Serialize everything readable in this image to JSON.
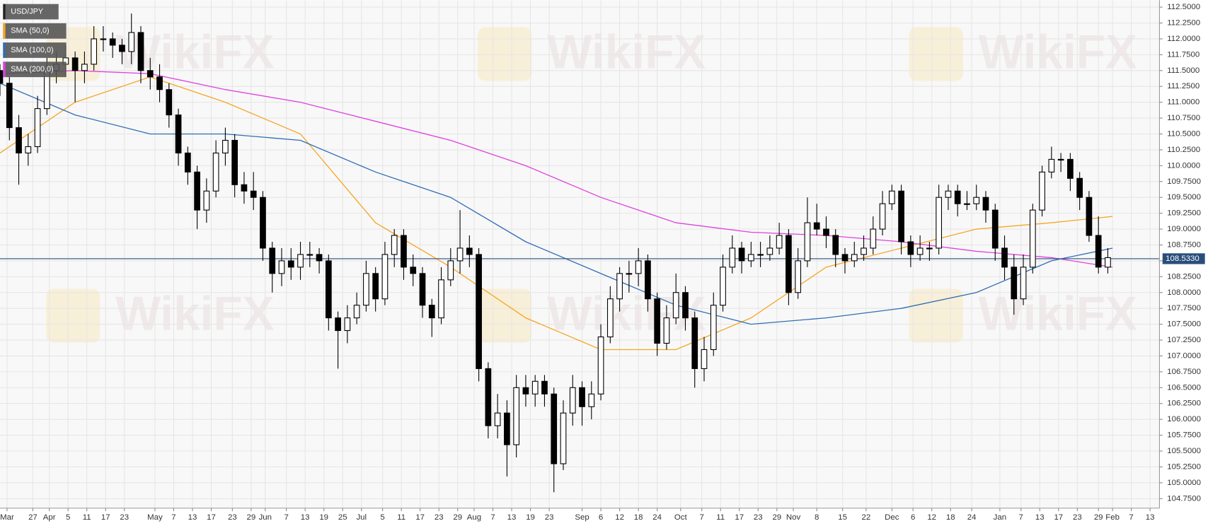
{
  "chart_data": {
    "type": "candlestick",
    "title": "USD/JPY",
    "watermark": "WikiFX",
    "price_line": {
      "value": 108.533,
      "label": "108.5330",
      "color": "#2a4e7c"
    },
    "candles": {
      "up_color": "#ffffff",
      "down_color": "#000000",
      "x": [
        0,
        2,
        4,
        6,
        8,
        10,
        12,
        14,
        16,
        18,
        20,
        22,
        24,
        26,
        28,
        30,
        32,
        34,
        36,
        38,
        40,
        42,
        44,
        46,
        48,
        50,
        52,
        54,
        56,
        58,
        60,
        62,
        64,
        66,
        68,
        70,
        72,
        74,
        76,
        78,
        80,
        82,
        84,
        86,
        88,
        90,
        92,
        94,
        96,
        98,
        100,
        102,
        104,
        106,
        108,
        110,
        112,
        114,
        116,
        118,
        120,
        122,
        124,
        126,
        128,
        130,
        132,
        134,
        136,
        138,
        140,
        142,
        144,
        146,
        148,
        150,
        152,
        154,
        156,
        158,
        160,
        162,
        164,
        166,
        168,
        170,
        172,
        174,
        176,
        178,
        180,
        182,
        184,
        186,
        188,
        190,
        192,
        194,
        196,
        198,
        200,
        202,
        204,
        206,
        208,
        210,
        212,
        214,
        216,
        218,
        220,
        222,
        224,
        226,
        228,
        230,
        232,
        234,
        236
      ],
      "open": [
        111.5,
        111.3,
        110.6,
        110.2,
        110.3,
        110.9,
        111.5,
        111.6,
        111.7,
        111.5,
        111.6,
        112.0,
        112.0,
        111.9,
        111.8,
        112.1,
        111.5,
        111.4,
        111.2,
        110.8,
        110.2,
        109.9,
        109.3,
        109.6,
        110.2,
        110.4,
        109.7,
        109.6,
        109.5,
        108.7,
        108.3,
        108.5,
        108.4,
        108.6,
        108.6,
        108.5,
        107.6,
        107.4,
        107.6,
        107.8,
        108.3,
        107.9,
        108.6,
        108.9,
        108.4,
        108.3,
        107.8,
        107.6,
        108.2,
        108.5,
        108.7,
        108.6,
        106.8,
        105.9,
        106.1,
        105.6,
        106.5,
        106.4,
        106.6,
        106.4,
        105.3,
        106.1,
        106.5,
        106.2,
        106.4,
        107.3,
        107.9,
        108.3,
        108.3,
        108.5,
        107.9,
        107.2,
        107.6,
        108.0,
        107.6,
        106.8,
        107.1,
        107.8,
        108.4,
        108.7,
        108.5,
        108.6,
        108.6,
        108.7,
        108.9,
        108.0,
        108.5,
        109.1,
        109.0,
        108.9,
        108.6,
        108.5,
        108.6,
        108.7,
        109.0,
        109.4,
        109.6,
        108.8,
        108.6,
        108.7,
        108.7,
        109.5,
        109.6,
        109.4,
        109.4,
        109.5,
        109.3,
        108.7,
        108.4,
        107.9,
        108.4,
        109.3,
        109.9,
        110.1,
        110.1,
        109.8,
        109.5,
        108.9,
        108.4
      ],
      "high": [
        111.6,
        111.4,
        110.8,
        110.5,
        111.1,
        111.7,
        111.8,
        111.9,
        111.8,
        111.8,
        112.2,
        112.2,
        112.1,
        112.0,
        112.4,
        112.2,
        111.7,
        111.6,
        111.3,
        110.9,
        110.3,
        110.0,
        109.8,
        110.4,
        110.6,
        110.5,
        109.9,
        109.9,
        109.6,
        108.8,
        108.7,
        108.7,
        108.8,
        108.8,
        108.7,
        108.6,
        107.7,
        107.8,
        108.0,
        108.5,
        108.4,
        108.8,
        109.0,
        109.0,
        108.6,
        108.4,
        107.9,
        108.4,
        108.7,
        109.3,
        108.9,
        108.7,
        106.9,
        106.4,
        106.3,
        106.7,
        106.7,
        106.7,
        106.7,
        106.5,
        106.3,
        106.7,
        106.6,
        106.6,
        107.5,
        108.1,
        108.4,
        108.5,
        108.7,
        108.6,
        108.0,
        107.8,
        108.3,
        108.1,
        107.7,
        107.3,
        108.0,
        108.6,
        108.9,
        108.8,
        108.8,
        108.8,
        108.9,
        109.1,
        109.0,
        108.7,
        109.5,
        109.4,
        109.2,
        109.0,
        108.7,
        108.8,
        108.9,
        109.2,
        109.6,
        109.7,
        109.7,
        108.9,
        108.9,
        108.8,
        109.7,
        109.7,
        109.7,
        109.6,
        109.7,
        109.6,
        109.4,
        108.9,
        108.6,
        108.6,
        109.4,
        110.0,
        110.3,
        110.2,
        110.2,
        109.9,
        109.6,
        109.2,
        108.7
      ],
      "low": [
        111.1,
        110.4,
        109.7,
        110.0,
        110.2,
        110.8,
        111.3,
        111.4,
        111.0,
        111.3,
        111.5,
        111.8,
        111.7,
        111.6,
        111.6,
        111.3,
        111.2,
        111.0,
        110.6,
        110.0,
        109.7,
        109.0,
        109.1,
        109.5,
        110.0,
        109.5,
        109.4,
        109.3,
        108.5,
        108.0,
        108.1,
        108.2,
        108.2,
        108.4,
        108.3,
        107.4,
        106.8,
        107.2,
        107.5,
        107.7,
        107.7,
        107.8,
        108.4,
        108.2,
        108.1,
        107.6,
        107.3,
        107.5,
        108.1,
        108.3,
        108.4,
        106.6,
        105.7,
        105.7,
        105.1,
        105.4,
        106.2,
        106.2,
        106.2,
        104.85,
        105.2,
        105.9,
        105.9,
        106.0,
        106.3,
        107.2,
        107.7,
        108.0,
        108.1,
        107.7,
        107.0,
        107.1,
        107.5,
        107.4,
        106.5,
        106.6,
        107.0,
        107.7,
        108.3,
        108.3,
        108.4,
        108.4,
        108.5,
        108.6,
        107.8,
        107.9,
        108.4,
        108.9,
        108.7,
        108.4,
        108.3,
        108.4,
        108.5,
        108.6,
        108.9,
        109.3,
        108.6,
        108.4,
        108.5,
        108.5,
        108.6,
        109.3,
        109.2,
        109.3,
        109.3,
        109.1,
        108.5,
        108.2,
        107.65,
        107.8,
        108.3,
        109.2,
        109.8,
        109.9,
        109.6,
        109.3,
        108.8,
        108.3,
        108.3
      ],
      "close": [
        111.3,
        110.6,
        110.2,
        110.3,
        110.9,
        111.5,
        111.6,
        111.7,
        111.5,
        111.6,
        112.0,
        112.0,
        111.9,
        111.8,
        112.1,
        111.5,
        111.4,
        111.2,
        110.8,
        110.2,
        109.9,
        109.3,
        109.6,
        110.2,
        110.4,
        109.7,
        109.6,
        109.5,
        108.7,
        108.3,
        108.5,
        108.4,
        108.6,
        108.6,
        108.5,
        107.6,
        107.4,
        107.6,
        107.8,
        108.3,
        107.9,
        108.6,
        108.9,
        108.4,
        108.3,
        107.8,
        107.6,
        108.2,
        108.5,
        108.7,
        108.6,
        106.8,
        105.9,
        106.1,
        105.6,
        106.5,
        106.4,
        106.6,
        106.4,
        105.3,
        106.1,
        106.5,
        106.2,
        106.4,
        107.3,
        107.9,
        108.3,
        108.3,
        108.5,
        107.9,
        107.2,
        107.6,
        108.0,
        107.6,
        106.8,
        107.1,
        107.8,
        108.4,
        108.7,
        108.5,
        108.6,
        108.6,
        108.7,
        108.9,
        108.0,
        108.5,
        109.1,
        109.0,
        108.9,
        108.6,
        108.5,
        108.6,
        108.7,
        109.0,
        109.4,
        109.6,
        108.8,
        108.6,
        108.7,
        108.7,
        109.5,
        109.6,
        109.4,
        109.4,
        109.5,
        109.3,
        108.7,
        108.4,
        107.9,
        108.4,
        109.3,
        109.9,
        110.1,
        110.1,
        109.8,
        109.5,
        108.9,
        108.4,
        108.55
      ]
    },
    "series": [
      {
        "name": "SMA (50,0)",
        "color": "#f5a623",
        "x": [
          0,
          16,
          32,
          48,
          64,
          80,
          96,
          112,
          128,
          144,
          160,
          176,
          192,
          208,
          224,
          237
        ],
        "values": [
          110.2,
          111.0,
          111.4,
          111.0,
          110.5,
          109.1,
          108.4,
          107.6,
          107.1,
          107.1,
          107.6,
          108.4,
          108.7,
          109.0,
          109.1,
          109.2
        ]
      },
      {
        "name": "SMA (100,0)",
        "color": "#2f6db5",
        "x": [
          0,
          16,
          32,
          48,
          64,
          80,
          96,
          112,
          128,
          144,
          160,
          176,
          192,
          208,
          224,
          237
        ],
        "values": [
          111.3,
          110.8,
          110.5,
          110.5,
          110.4,
          109.9,
          109.5,
          108.8,
          108.3,
          107.8,
          107.5,
          107.6,
          107.75,
          108.0,
          108.5,
          108.7
        ]
      },
      {
        "name": "SMA (200,0)",
        "color": "#e040e0",
        "x": [
          0,
          16,
          32,
          48,
          64,
          80,
          96,
          112,
          128,
          144,
          160,
          176,
          192,
          208,
          224,
          237
        ],
        "values": [
          111.45,
          111.5,
          111.45,
          111.2,
          111.0,
          110.7,
          110.4,
          110.0,
          109.5,
          109.1,
          108.95,
          108.9,
          108.8,
          108.65,
          108.55,
          108.4
        ]
      }
    ],
    "xlim": [
      0,
      247
    ],
    "ylim": [
      104.6,
      112.61
    ],
    "yticks": [
      {
        "value": 104.75,
        "label": "104.7500"
      },
      {
        "value": 105,
        "label": "105.0000"
      },
      {
        "value": 105.25,
        "label": "105.2500"
      },
      {
        "value": 105.5,
        "label": "105.5000"
      },
      {
        "value": 105.75,
        "label": "105.7500"
      },
      {
        "value": 106,
        "label": "106.0000"
      },
      {
        "value": 106.25,
        "label": "106.2500"
      },
      {
        "value": 106.5,
        "label": "106.5000"
      },
      {
        "value": 106.75,
        "label": "106.7500"
      },
      {
        "value": 107,
        "label": "107.0000"
      },
      {
        "value": 107.25,
        "label": "107.2500"
      },
      {
        "value": 107.5,
        "label": "107.5000"
      },
      {
        "value": 107.75,
        "label": "107.7500"
      },
      {
        "value": 108,
        "label": "108.0000"
      },
      {
        "value": 108.25,
        "label": "108.2500"
      },
      {
        "value": 108.5,
        "label": "108.5000"
      },
      {
        "value": 108.75,
        "label": "108.7500"
      },
      {
        "value": 109,
        "label": "109.0000"
      },
      {
        "value": 109.25,
        "label": "109.2500"
      },
      {
        "value": 109.5,
        "label": "109.5000"
      },
      {
        "value": 109.75,
        "label": "109.7500"
      },
      {
        "value": 110,
        "label": "110.0000"
      },
      {
        "value": 110.25,
        "label": "110.2500"
      },
      {
        "value": 110.5,
        "label": "110.5000"
      },
      {
        "value": 110.75,
        "label": "110.7500"
      },
      {
        "value": 111,
        "label": "111.0000"
      },
      {
        "value": 111.25,
        "label": "111.2500"
      },
      {
        "value": 111.5,
        "label": "111.5000"
      },
      {
        "value": 111.75,
        "label": "111.7500"
      },
      {
        "value": 112,
        "label": "112.0000"
      },
      {
        "value": 112.25,
        "label": "112.2500"
      },
      {
        "value": 112.5,
        "label": "112.5000"
      }
    ],
    "xticks": [
      {
        "value": 1.5,
        "label": "Mar"
      },
      {
        "value": 7,
        "label": "27"
      },
      {
        "value": 10.5,
        "label": "Apr"
      },
      {
        "value": 14.5,
        "label": "5"
      },
      {
        "value": 18.5,
        "label": "11"
      },
      {
        "value": 22.5,
        "label": "17"
      },
      {
        "value": 26.5,
        "label": "23"
      },
      {
        "value": 33,
        "label": "May"
      },
      {
        "value": 37,
        "label": "7"
      },
      {
        "value": 41,
        "label": "13"
      },
      {
        "value": 45,
        "label": "17"
      },
      {
        "value": 49.5,
        "label": "23"
      },
      {
        "value": 53.5,
        "label": "29"
      },
      {
        "value": 56.5,
        "label": "Jun"
      },
      {
        "value": 61,
        "label": "7"
      },
      {
        "value": 65,
        "label": "13"
      },
      {
        "value": 69,
        "label": "19"
      },
      {
        "value": 73,
        "label": "25"
      },
      {
        "value": 77,
        "label": "Jul"
      },
      {
        "value": 81.5,
        "label": "5"
      },
      {
        "value": 85.5,
        "label": "11"
      },
      {
        "value": 89.5,
        "label": "17"
      },
      {
        "value": 93.5,
        "label": "23"
      },
      {
        "value": 97.5,
        "label": "29"
      },
      {
        "value": 101,
        "label": "Aug"
      },
      {
        "value": 105,
        "label": "7"
      },
      {
        "value": 109,
        "label": "13"
      },
      {
        "value": 113,
        "label": "19"
      },
      {
        "value": 117,
        "label": "23"
      },
      {
        "value": 124,
        "label": "Sep"
      },
      {
        "value": 128,
        "label": "6"
      },
      {
        "value": 132,
        "label": "12"
      },
      {
        "value": 136,
        "label": "18"
      },
      {
        "value": 140,
        "label": "24"
      },
      {
        "value": 145,
        "label": "Oct"
      },
      {
        "value": 149.5,
        "label": "7"
      },
      {
        "value": 153.5,
        "label": "11"
      },
      {
        "value": 157.5,
        "label": "17"
      },
      {
        "value": 161.5,
        "label": "23"
      },
      {
        "value": 165.5,
        "label": "29"
      },
      {
        "value": 169,
        "label": "Nov"
      },
      {
        "value": 174,
        "label": "8"
      },
      {
        "value": 179.5,
        "label": "15"
      },
      {
        "value": 184.5,
        "label": "22"
      },
      {
        "value": 190,
        "label": "Dec"
      },
      {
        "value": 194.5,
        "label": "6"
      },
      {
        "value": 198.5,
        "label": "12"
      },
      {
        "value": 202.5,
        "label": "18"
      },
      {
        "value": 207,
        "label": "24"
      },
      {
        "value": 213,
        "label": "Jan"
      },
      {
        "value": 217.5,
        "label": "7"
      },
      {
        "value": 221.5,
        "label": "13"
      },
      {
        "value": 225.5,
        "label": "17"
      },
      {
        "value": 229.5,
        "label": "23"
      },
      {
        "value": 234,
        "label": "29"
      },
      {
        "value": 237,
        "label": "Feb"
      },
      {
        "value": 241,
        "label": "7"
      },
      {
        "value": 245,
        "label": "13"
      }
    ],
    "grid": true
  }
}
